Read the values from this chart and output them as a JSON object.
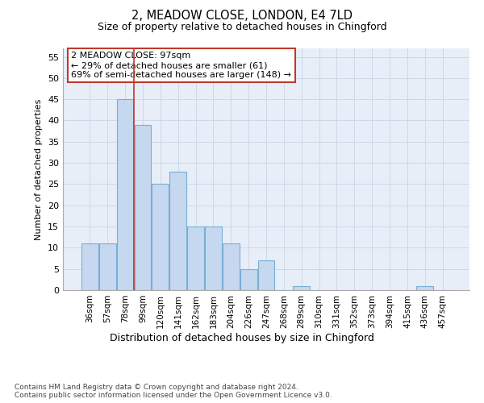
{
  "title1": "2, MEADOW CLOSE, LONDON, E4 7LD",
  "title2": "Size of property relative to detached houses in Chingford",
  "xlabel": "Distribution of detached houses by size in Chingford",
  "ylabel": "Number of detached properties",
  "categories": [
    "36sqm",
    "57sqm",
    "78sqm",
    "99sqm",
    "120sqm",
    "141sqm",
    "162sqm",
    "183sqm",
    "204sqm",
    "226sqm",
    "247sqm",
    "268sqm",
    "289sqm",
    "310sqm",
    "331sqm",
    "352sqm",
    "373sqm",
    "394sqm",
    "415sqm",
    "436sqm",
    "457sqm"
  ],
  "values": [
    11,
    11,
    45,
    39,
    25,
    28,
    15,
    15,
    11,
    5,
    7,
    0,
    1,
    0,
    0,
    0,
    0,
    0,
    0,
    1,
    0
  ],
  "bar_color": "#c5d8ef",
  "bar_edge_color": "#7aaed4",
  "vline_x": 2.5,
  "vline_color": "#c0392b",
  "annotation_text": "2 MEADOW CLOSE: 97sqm\n← 29% of detached houses are smaller (61)\n69% of semi-detached houses are larger (148) →",
  "annotation_box_color": "#ffffff",
  "annotation_box_edge": "#c0392b",
  "ylim": [
    0,
    57
  ],
  "yticks": [
    0,
    5,
    10,
    15,
    20,
    25,
    30,
    35,
    40,
    45,
    50,
    55
  ],
  "footnote": "Contains HM Land Registry data © Crown copyright and database right 2024.\nContains public sector information licensed under the Open Government Licence v3.0.",
  "grid_color": "#c8d4e8",
  "background_color": "#e8eef8"
}
